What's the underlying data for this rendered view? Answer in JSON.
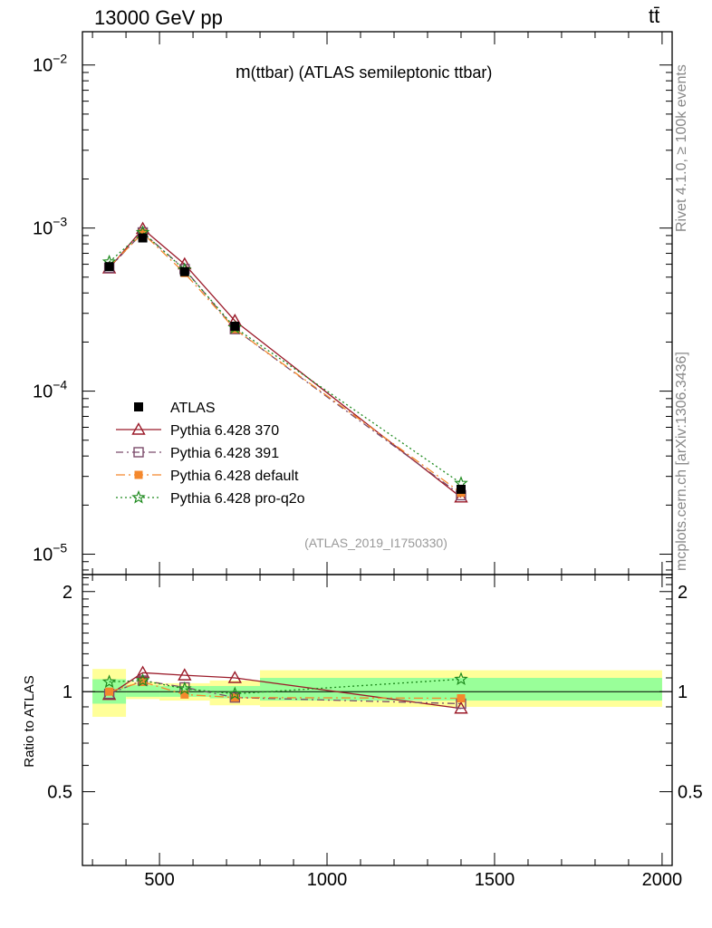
{
  "header": {
    "left": "13000 GeV pp",
    "right": "tt̄"
  },
  "side_labels": {
    "rivet": "Rivet 4.1.0, ≥ 100k events",
    "mcplots": "mcplots.cern.ch [arXiv:1306.3436]"
  },
  "chart_data": {
    "type": "line",
    "title": "m(ttbar) (ATLAS semileptonic ttbar)",
    "title_parts": {
      "symbol": "m",
      "rest": "(ttbar) (ATLAS semileptonic ttbar)"
    },
    "watermark": "(ATLAS_2019_I1750330)",
    "xlim": [
      270,
      2030
    ],
    "x_ticks": [
      500,
      1000,
      1500,
      2000
    ],
    "main": {
      "yscale": "log",
      "ylim": [
        7.5e-06,
        0.016
      ],
      "y_ticks": [
        {
          "value": 1e-05,
          "base": "10",
          "exp": "−5"
        },
        {
          "value": 0.0001,
          "base": "10",
          "exp": "−4"
        },
        {
          "value": 0.001,
          "base": "10",
          "exp": "−3"
        },
        {
          "value": 0.01,
          "base": "10",
          "exp": "−2"
        }
      ]
    },
    "ratio": {
      "ylabel": "Ratio to ATLAS",
      "ylim": [
        0.3,
        2.25
      ],
      "y_ticks": [
        0.5,
        1,
        2
      ],
      "y_tick_labels": [
        "0.5",
        "1",
        "2"
      ]
    },
    "bins": [
      {
        "lo": 300,
        "hi": 400
      },
      {
        "lo": 400,
        "hi": 500
      },
      {
        "lo": 500,
        "hi": 650
      },
      {
        "lo": 650,
        "hi": 800
      },
      {
        "lo": 800,
        "hi": 2000
      }
    ],
    "x": [
      350,
      450,
      575,
      725,
      1400
    ],
    "data": {
      "name": "ATLAS",
      "values": [
        0.00058,
        0.00087,
        0.00054,
        0.00025,
        2.5e-05
      ],
      "band_inner": [
        [
          0.92,
          1.09
        ],
        [
          0.965,
          1.045
        ],
        [
          0.965,
          1.04
        ],
        [
          0.955,
          1.04
        ],
        [
          0.94,
          1.1
        ]
      ],
      "band_outer": [
        [
          0.84,
          1.17
        ],
        [
          0.95,
          1.07
        ],
        [
          0.94,
          1.06
        ],
        [
          0.91,
          1.08
        ],
        [
          0.9,
          1.16
        ]
      ]
    },
    "series": [
      {
        "name": "Pythia 6.428 370",
        "color": "#9b1b2a",
        "dash": "",
        "marker": "triangle",
        "values": [
          0.000567,
          0.00099,
          0.0006,
          0.00027,
          2.23e-05
        ],
        "ratio": [
          0.978,
          1.14,
          1.12,
          1.1,
          0.89
        ]
      },
      {
        "name": "Pythia 6.428 391",
        "color": "#7a4a6a",
        "dash": "8 4 2 4",
        "marker": "square",
        "values": [
          0.00057,
          0.00094,
          0.00056,
          0.00024,
          2.3e-05
        ],
        "ratio": [
          0.985,
          1.08,
          1.03,
          0.96,
          0.92
        ]
      },
      {
        "name": "Pythia 6.428 default",
        "color": "#f4882c",
        "dash": "10 4 2 4",
        "marker": "filled-square",
        "values": [
          0.00058,
          0.00093,
          0.00053,
          0.00024,
          2.38e-05
        ],
        "ratio": [
          1.0,
          1.07,
          0.98,
          0.96,
          0.955
        ]
      },
      {
        "name": "Pythia 6.428 pro-q2o",
        "color": "#1e8a1e",
        "dash": "2 3",
        "marker": "star",
        "values": [
          0.00062,
          0.00094,
          0.000555,
          0.000245,
          2.72e-05
        ],
        "ratio": [
          1.07,
          1.08,
          1.02,
          0.985,
          1.09
        ]
      }
    ]
  }
}
